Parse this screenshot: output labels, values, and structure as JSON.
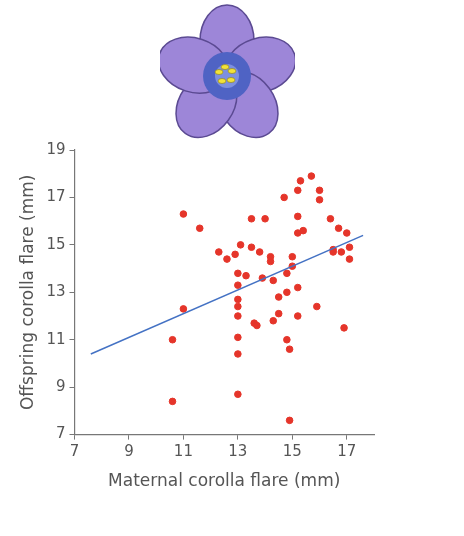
{
  "chart_data": {
    "type": "scatter",
    "x_label": "Maternal corolla flare (mm)",
    "y_label": "Offspring corolla flare (mm)",
    "series": [
      {
        "type": "scatter",
        "color": "#e5352a",
        "marker": "circle",
        "x": [
          10.6,
          10.6,
          11.0,
          11.0,
          11.6,
          12.3,
          12.6,
          12.9,
          13.1,
          13.0,
          13.0,
          13.0,
          13.0,
          13.0,
          13.0,
          13.0,
          13.0,
          13.3,
          13.5,
          13.5,
          13.6,
          13.7,
          13.8,
          13.9,
          14.0,
          14.2,
          14.2,
          14.3,
          14.3,
          14.5,
          14.5,
          14.7,
          14.8,
          14.8,
          14.8,
          14.9,
          14.9,
          15.0,
          15.0,
          15.2,
          15.2,
          15.2,
          15.2,
          15.2,
          15.3,
          15.4,
          15.7,
          15.9,
          16.0,
          16.0,
          16.4,
          16.5,
          16.5,
          16.7,
          16.8,
          16.9,
          17.0,
          17.1,
          17.1
        ],
        "values": [
          11.0,
          8.4,
          16.3,
          12.3,
          15.7,
          14.7,
          14.4,
          14.6,
          15.0,
          13.8,
          13.3,
          12.7,
          12.4,
          12.0,
          11.1,
          10.4,
          8.7,
          13.7,
          16.1,
          14.9,
          11.7,
          11.6,
          14.7,
          13.6,
          16.1,
          14.3,
          14.5,
          13.5,
          11.8,
          12.8,
          12.1,
          17.0,
          13.8,
          13.0,
          11.0,
          10.6,
          7.6,
          14.1,
          14.5,
          17.3,
          16.2,
          15.5,
          13.2,
          12.0,
          17.7,
          15.6,
          17.9,
          12.4,
          17.3,
          16.9,
          16.1,
          14.8,
          14.7,
          15.7,
          14.7,
          11.5,
          15.5,
          14.4,
          14.9
        ]
      },
      {
        "type": "line",
        "color": "#4472c4",
        "line_style": "solid",
        "x": [
          7.6,
          17.6
        ],
        "values": [
          10.4,
          15.4
        ]
      }
    ],
    "xlim": [
      7,
      18
    ],
    "ylim": [
      7,
      19
    ],
    "xticks": [
      7,
      9,
      11,
      13,
      15,
      17
    ],
    "yticks": [
      7,
      9,
      11,
      13,
      15,
      17,
      19
    ],
    "grid": false
  }
}
